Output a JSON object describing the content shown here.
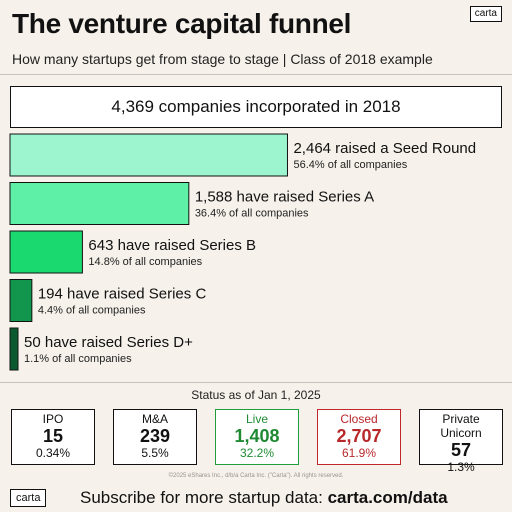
{
  "header": {
    "title": "The venture capital funnel",
    "subtitle": "How many startups get from stage to stage  |  Class of 2018 example",
    "logo": "carta"
  },
  "incorporated": "4,369 companies incorporated in 2018",
  "chart_data": {
    "type": "bar",
    "orientation": "horizontal",
    "total_companies": 4369,
    "categories": [
      "Seed Round",
      "Series A",
      "Series B",
      "Series C",
      "Series D+"
    ],
    "values": [
      2464,
      1588,
      643,
      194,
      50
    ],
    "labels": [
      "2,464 raised a Seed Round",
      "1,588 have raised Series A",
      "643 have raised Series B",
      "194 have raised Series C",
      "50 have raised Series D+"
    ],
    "sublabels": [
      "56.4% of all companies",
      "36.4% of all companies",
      "14.8% of all companies",
      "4.4% of all companies",
      "1.1% of all companies"
    ],
    "colors": [
      "#9cf5cf",
      "#5ef0a6",
      "#1ad96f",
      "#12964d",
      "#0b5a2f"
    ]
  },
  "status": {
    "title": "Status as of Jan 1, 2025",
    "outcomes": [
      {
        "label": "IPO",
        "count": "15",
        "pct": "0.34%"
      },
      {
        "label": "M&A",
        "count": "239",
        "pct": "5.5%"
      },
      {
        "label": "Live",
        "count": "1,408",
        "pct": "32.2%"
      },
      {
        "label": "Closed",
        "count": "2,707",
        "pct": "61.9%"
      },
      {
        "label": "Private Unicorn",
        "count": "57",
        "pct": "1.3%"
      }
    ]
  },
  "footer": {
    "copyright": "©2025 eShares Inc., d/b/a Carta Inc. (\"Carta\"). All rights reserved.",
    "logo": "carta",
    "subscribe_text": "Subscribe for more startup data: ",
    "subscribe_url": "carta.com/data"
  }
}
